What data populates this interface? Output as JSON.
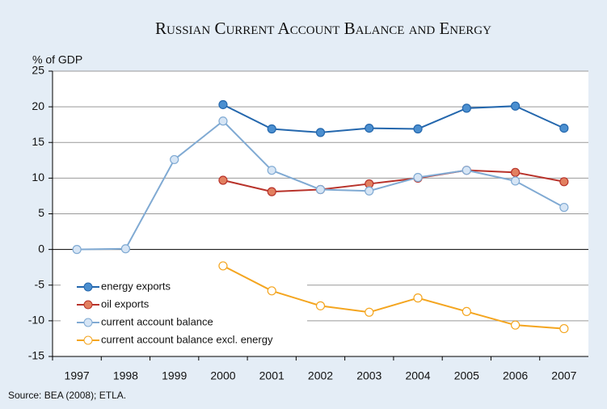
{
  "chart_data": {
    "type": "line",
    "title": "Russian Current Account Balance and Energy",
    "y_label": "% of GDP",
    "source": "Source: BEA (2008); ETLA.",
    "categories": [
      "1997",
      "1998",
      "1999",
      "2000",
      "2001",
      "2002",
      "2003",
      "2004",
      "2005",
      "2006",
      "2007"
    ],
    "series": [
      {
        "name": "energy exports",
        "color": "#2467ad",
        "marker_color": "#4b8fd0",
        "values": [
          null,
          null,
          null,
          20.3,
          16.9,
          16.4,
          17.0,
          16.9,
          19.8,
          20.1,
          17.0
        ]
      },
      {
        "name": "oil exports",
        "color": "#b8322a",
        "marker_color": "#e28060",
        "values": [
          null,
          null,
          null,
          9.7,
          8.1,
          8.4,
          9.2,
          10.0,
          11.1,
          10.8,
          9.5
        ]
      },
      {
        "name": "current account balance",
        "color": "#80aad3",
        "marker_color": "#d6e5f5",
        "values": [
          0.0,
          0.1,
          12.6,
          18.0,
          11.1,
          8.4,
          8.2,
          10.1,
          11.1,
          9.6,
          5.9
        ]
      },
      {
        "name": "current account balance excl. energy",
        "color": "#f4a51f",
        "marker_color": "#ffffff",
        "values": [
          null,
          null,
          null,
          -2.3,
          -5.8,
          -7.9,
          -8.8,
          -6.8,
          -8.7,
          -10.6,
          -11.1
        ]
      }
    ],
    "ylim": [
      -15,
      25
    ],
    "yticks": [
      -15,
      -10,
      -5,
      0,
      5,
      10,
      15,
      20,
      25
    ],
    "grid": true,
    "legend": "lower left"
  }
}
